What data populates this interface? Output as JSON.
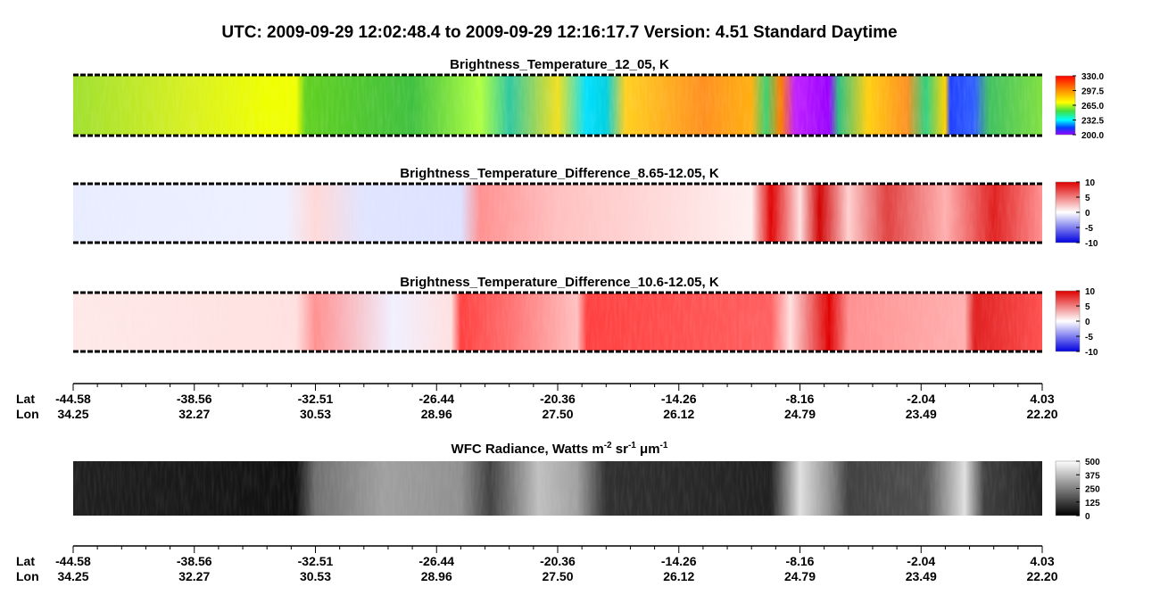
{
  "header": {
    "title": "UTC:  2009-09-29   12:02:48.4  to  2009-09-29   12:16:17.7    Version: 4.51  Standard Daytime"
  },
  "panels": [
    {
      "title": "Brightness_Temperature_12_05, K",
      "colorbar": [
        "330.0",
        "297.5",
        "265.0",
        "232.5",
        "200.0"
      ]
    },
    {
      "title": "Brightness_Temperature_Difference_8.65-12.05, K",
      "colorbar": [
        "10",
        "5",
        "0",
        "-5",
        "-10"
      ]
    },
    {
      "title": "Brightness_Temperature_Difference_10.6-12.05, K",
      "colorbar": [
        "10",
        "5",
        "0",
        "-5",
        "-10"
      ]
    },
    {
      "title_parts": [
        "WFC Radiance, Watts m",
        "-2",
        " sr",
        "-1",
        " μm",
        "-1"
      ],
      "colorbar": [
        "500",
        "375",
        "250",
        "125",
        "0"
      ]
    }
  ],
  "axis": {
    "lat_label": "Lat",
    "lon_label": "Lon",
    "lat": [
      "-44.58",
      "-38.56",
      "-32.51",
      "-26.44",
      "-20.36",
      "-14.26",
      "-8.16",
      "-2.04",
      "4.03"
    ],
    "lon": [
      "34.25",
      "32.27",
      "30.53",
      "28.96",
      "27.50",
      "26.12",
      "24.79",
      "23.49",
      "22.20"
    ]
  }
}
